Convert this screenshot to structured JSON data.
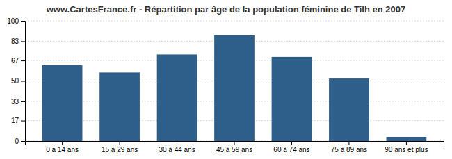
{
  "chart_data": {
    "type": "bar",
    "title": "www.CartesFrance.fr - Répartition par âge de la population féminine de Tilh en 2007",
    "categories": [
      "0 à 14 ans",
      "15 à 29 ans",
      "30 à 44 ans",
      "45 à 59 ans",
      "60 à 74 ans",
      "75 à 89 ans",
      "90 ans et plus"
    ],
    "values": [
      63,
      57,
      72,
      88,
      70,
      52,
      3
    ],
    "color": "#2e5f8a",
    "ylim": [
      0,
      100
    ],
    "yticks": [
      0,
      17,
      33,
      50,
      67,
      83,
      100
    ],
    "grid": true
  }
}
